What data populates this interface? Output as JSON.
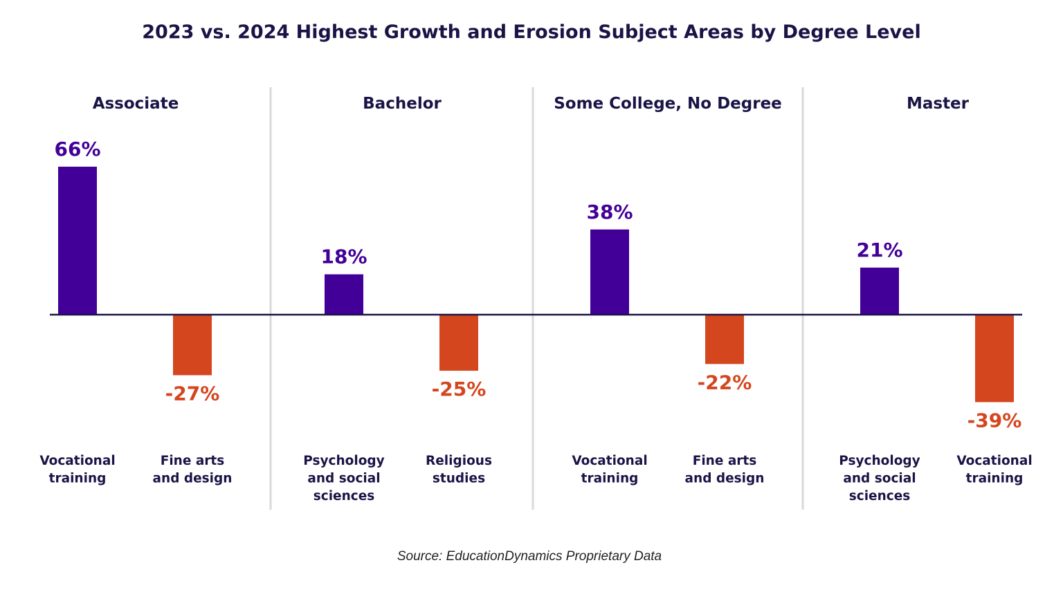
{
  "chart_data": {
    "type": "bar",
    "title": "2023 vs. 2024 Highest Growth and Erosion Subject Areas by Degree Level",
    "source": "Source: EducationDynamics Proprietary Data",
    "colors": {
      "growth": "#430098",
      "erosion": "#d4461e",
      "text": "#1a1446",
      "baseline": "#1a1446",
      "divider": "#d9d9d9"
    },
    "groups": [
      {
        "name": "Associate",
        "bars": [
          {
            "label": "Vocational training",
            "lines": [
              "Vocational",
              "training"
            ],
            "value": 66,
            "display": "66%"
          },
          {
            "label": "Fine arts and design",
            "lines": [
              "Fine arts",
              "and design"
            ],
            "value": -27,
            "display": "-27%"
          }
        ]
      },
      {
        "name": "Bachelor",
        "bars": [
          {
            "label": "Psychology and social sciences",
            "lines": [
              "Psychology",
              "and social",
              "sciences"
            ],
            "value": 18,
            "display": "18%"
          },
          {
            "label": "Religious studies",
            "lines": [
              "Religious",
              "studies"
            ],
            "value": -25,
            "display": "-25%"
          }
        ]
      },
      {
        "name": "Some College, No Degree",
        "bars": [
          {
            "label": "Vocational training",
            "lines": [
              "Vocational",
              "training"
            ],
            "value": 38,
            "display": "38%"
          },
          {
            "label": "Fine arts and design",
            "lines": [
              "Fine arts",
              "and design"
            ],
            "value": -22,
            "display": "-22%"
          }
        ]
      },
      {
        "name": "Master",
        "bars": [
          {
            "label": "Psychology and social sciences",
            "lines": [
              "Psychology",
              "and social",
              "sciences"
            ],
            "value": 21,
            "display": "21%"
          },
          {
            "label": "Vocational training",
            "lines": [
              "Vocational",
              "training"
            ],
            "value": -39,
            "display": "-39%"
          }
        ]
      }
    ]
  }
}
